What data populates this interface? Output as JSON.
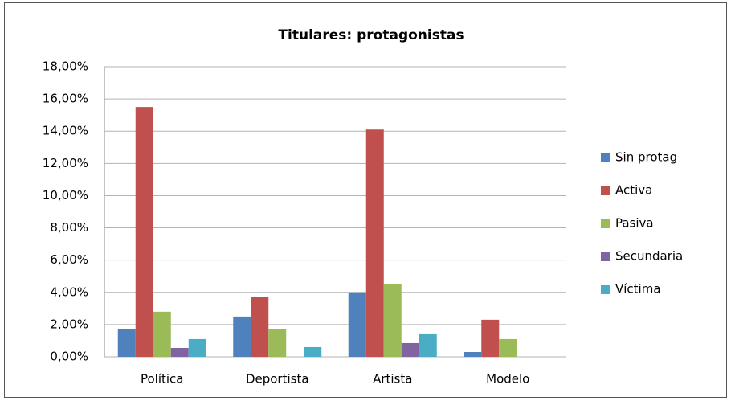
{
  "chart_data": {
    "type": "bar",
    "title": "Titulares: protagonistas",
    "categories": [
      "Política",
      "Deportista",
      "Artista",
      "Modelo"
    ],
    "series": [
      {
        "name": "Sin protag",
        "color": "#4f81bd",
        "values": [
          1.7,
          2.5,
          4.0,
          0.3
        ]
      },
      {
        "name": "Activa",
        "color": "#c0504d",
        "values": [
          15.5,
          3.7,
          14.1,
          2.3
        ]
      },
      {
        "name": "Pasiva",
        "color": "#9bbb59",
        "values": [
          2.8,
          1.7,
          4.5,
          1.1
        ]
      },
      {
        "name": "Secundaria",
        "color": "#8064a2",
        "values": [
          0.55,
          0,
          0.85,
          0
        ]
      },
      {
        "name": "Víctima",
        "color": "#4bacc6",
        "values": [
          1.1,
          0.6,
          1.4,
          0
        ]
      }
    ],
    "ylim": [
      0,
      18
    ],
    "yticks": [
      {
        "value": 0,
        "label": "0,00%"
      },
      {
        "value": 2,
        "label": "2,00%"
      },
      {
        "value": 4,
        "label": "4,00%"
      },
      {
        "value": 6,
        "label": "6,00%"
      },
      {
        "value": 8,
        "label": "8,00%"
      },
      {
        "value": 10,
        "label": "10,00%"
      },
      {
        "value": 12,
        "label": "12,00%"
      },
      {
        "value": 14,
        "label": "14,00%"
      },
      {
        "value": 16,
        "label": "16,00%"
      },
      {
        "value": 18,
        "label": "18,00%"
      }
    ],
    "grid": true,
    "legend": "right"
  }
}
